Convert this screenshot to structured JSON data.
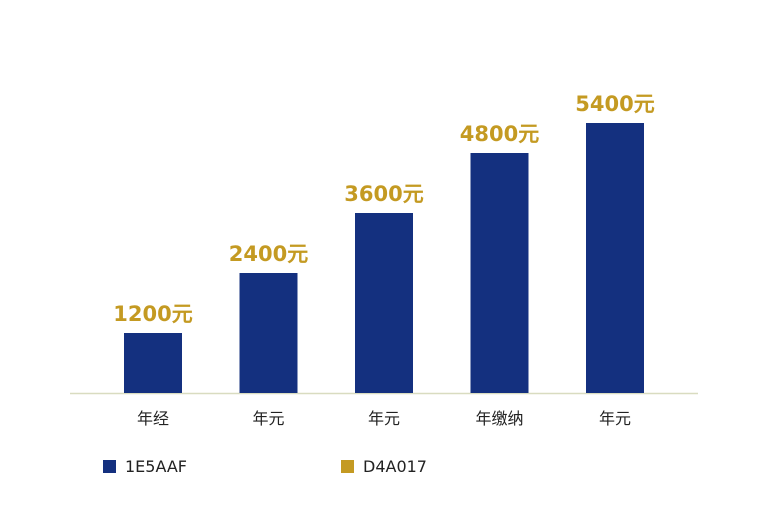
{
  "chart_data": {
    "type": "bar",
    "categories": [
      "年经",
      "年元",
      "年元",
      "年缴纳",
      "年元"
    ],
    "values": [
      1200,
      2400,
      3600,
      4800,
      5400
    ],
    "data_labels": [
      "1200元",
      "2400元",
      "3600元",
      "4800元",
      "5400元"
    ],
    "ylim": [
      0,
      6000
    ],
    "grid": false,
    "legend_position": "bottom-left",
    "legend": [
      {
        "label": "1E5AAF",
        "color": "#1e5aaf"
      },
      {
        "label": "D4A017",
        "color": "#d4a017"
      }
    ],
    "colors": {
      "bar": "#14307f",
      "label": "#c49a22",
      "axis": "#d9dcc0"
    }
  }
}
